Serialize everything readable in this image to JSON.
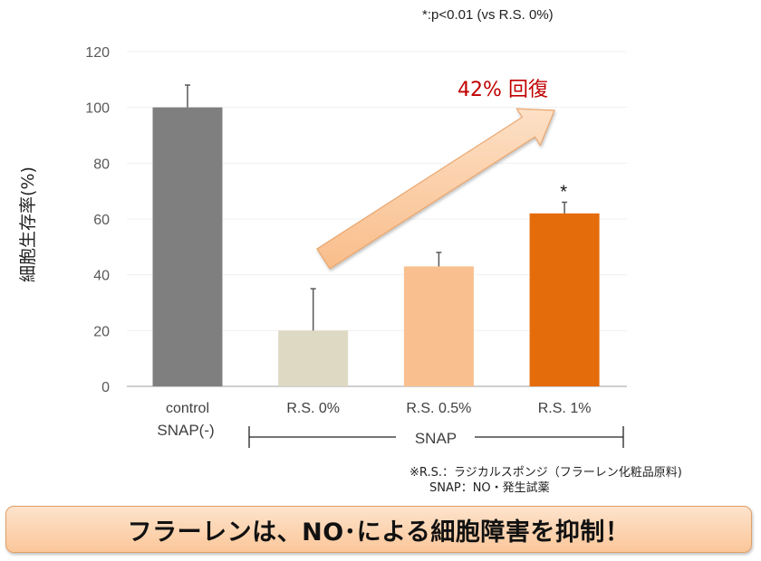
{
  "chart_data": {
    "type": "bar",
    "title": "",
    "xlabel": "",
    "ylabel": "細胞生存率(%)",
    "ylim": [
      0,
      120
    ],
    "yticks": [
      0,
      20,
      40,
      60,
      80,
      100,
      120
    ],
    "grid": true,
    "categories": [
      "control",
      "R.S. 0%",
      "R.S. 0.5%",
      "R.S. 1%"
    ],
    "category_sublabels": [
      "SNAP(-)",
      "",
      "",
      ""
    ],
    "values": [
      100,
      20,
      43,
      62
    ],
    "error": [
      8,
      15,
      5,
      4
    ],
    "colors": [
      "#7f7f7f",
      "#ddd9c3",
      "#f9bf8f",
      "#e46c0a"
    ],
    "significance_markers": [
      "",
      "",
      "",
      "*"
    ],
    "group_bracket": {
      "label": "SNAP",
      "from": "R.S. 0%",
      "to": "R.S. 1%"
    },
    "annotations": {
      "significance_note": "*:p<0.01 (vs R.S. 0%)",
      "arrow_label": "42% 回復",
      "arrow_label_color": "#c00000",
      "arrow_color": "#fbc79a"
    }
  },
  "footnote": {
    "line1": "※R.S.：ラジカルスポンジ（フラーレン化粧品原料)",
    "line2": "SNAP：NO・発生試薬"
  },
  "banner": {
    "text": "フラーレンは、NO･による細胞障害を抑制！"
  }
}
